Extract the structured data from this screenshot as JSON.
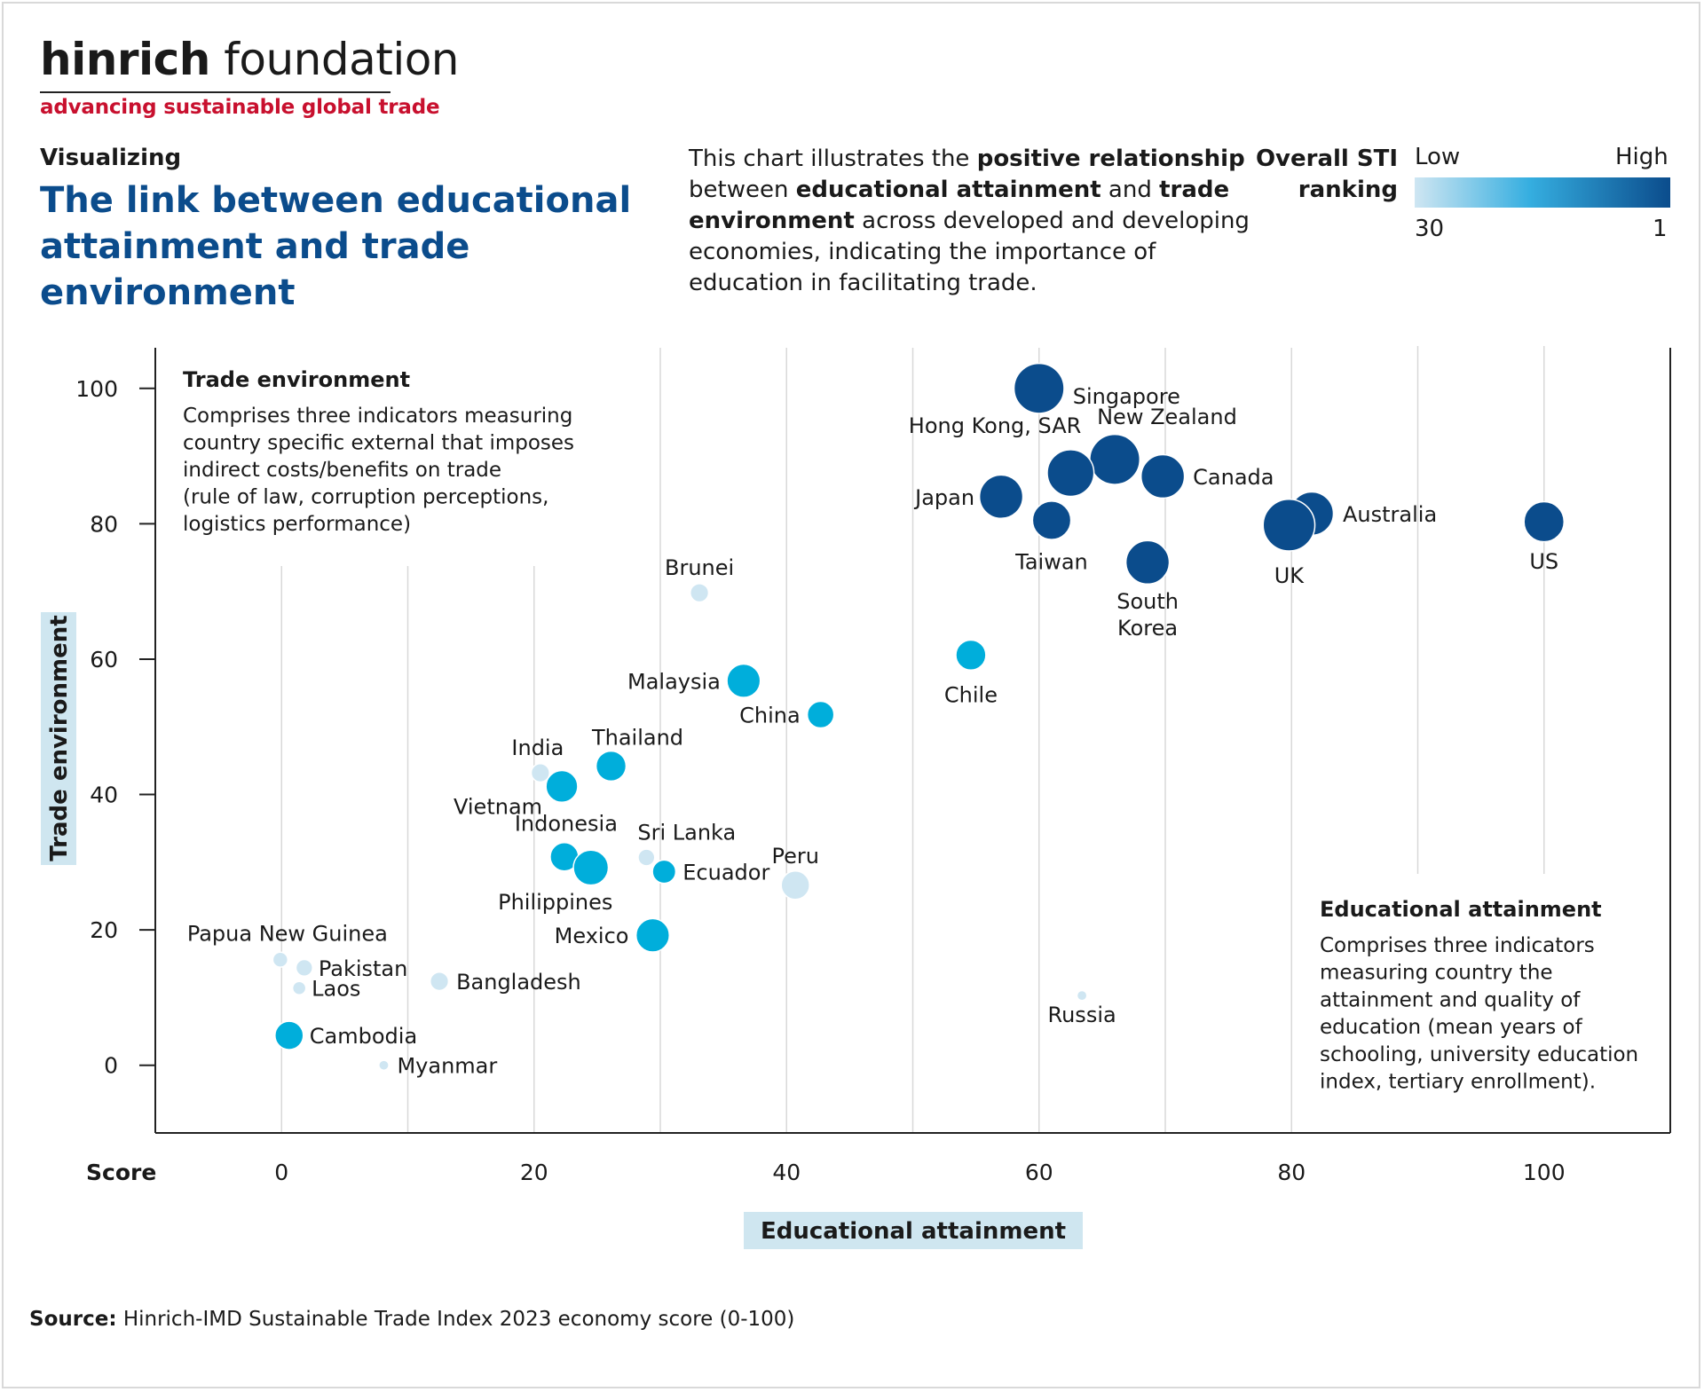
{
  "brand": {
    "name_bold": "hinrich",
    "name_light": " foundation",
    "tagline": "advancing sustainable global trade"
  },
  "header": {
    "kicker": "Visualizing",
    "title": "The link between educational attainment and trade environment",
    "description": {
      "t1": "This chart illustrates the ",
      "b1": "positive relationship",
      "t2": " between ",
      "b2": "educational attainment",
      "t3": " and ",
      "b3": "trade environment",
      "t4": " across developed and developing economies, indicating the importance of education in facilitating trade."
    }
  },
  "legend": {
    "title": "Overall STI ranking",
    "low_label": "Low",
    "high_label": "High",
    "min_value": "30",
    "max_value": "1",
    "colors": {
      "low": "#cfe6f2",
      "mid": "#00aedb",
      "high": "#0b4c8c"
    }
  },
  "source": {
    "label": "Source:",
    "text": " Hinrich-IMD Sustainable Trade Index 2023 economy score (0-100)"
  },
  "chart_data": {
    "type": "scatter",
    "xlabel": "Educational attainment",
    "ylabel": "Trade environment",
    "score_label": "Score",
    "xlim": [
      -10,
      110
    ],
    "ylim": [
      -10,
      106
    ],
    "x_ticks": [
      0,
      20,
      40,
      60,
      80,
      100
    ],
    "y_ticks": [
      0,
      20,
      40,
      60,
      80,
      100
    ],
    "grid": "vertical",
    "color_scale": "Overall STI ranking (tier: low / mid / high)",
    "annotations": [
      {
        "title": "Trade environment",
        "lines": [
          "Comprises three indicators measuring",
          "country specific external that imposes",
          "indirect costs/benefits on trade",
          "(rule of law, corruption perceptions,",
          "logistics performance)"
        ]
      },
      {
        "title": "Educational attainment",
        "lines": [
          "Comprises three indicators",
          "measuring country the",
          "attainment and quality of",
          "education (mean years of",
          "schooling, university education",
          "index, tertiary enrollment)."
        ]
      }
    ],
    "points": [
      {
        "label": "Singapore",
        "x": 60,
        "y": 100,
        "tier": "high",
        "size": 3
      },
      {
        "label": "New Zealand",
        "x": 66,
        "y": 89.5,
        "tier": "high",
        "size": 3
      },
      {
        "label": "Hong Kong, SAR",
        "x": 62.5,
        "y": 87.5,
        "tier": "high",
        "size": 2.8
      },
      {
        "label": "Canada",
        "x": 69.8,
        "y": 87,
        "tier": "high",
        "size": 2.6
      },
      {
        "label": "Japan",
        "x": 57,
        "y": 84,
        "tier": "high",
        "size": 2.6
      },
      {
        "label": "Taiwan",
        "x": 61,
        "y": 80.5,
        "tier": "high",
        "size": 2.3
      },
      {
        "label": "Australia",
        "x": 81.6,
        "y": 81.5,
        "tier": "high",
        "size": 2.6
      },
      {
        "label": "UK",
        "x": 79.8,
        "y": 79.8,
        "tier": "high",
        "size": 3.1
      },
      {
        "label": "US",
        "x": 100,
        "y": 80.3,
        "tier": "high",
        "size": 2.4
      },
      {
        "label": "South Korea",
        "x": 68.6,
        "y": 74.3,
        "tier": "high",
        "size": 2.6
      },
      {
        "label": "Chile",
        "x": 54.6,
        "y": 60.6,
        "tier": "mid",
        "size": 1.8
      },
      {
        "label": "Brunei",
        "x": 33.1,
        "y": 69.8,
        "tier": "low",
        "size": 1.1
      },
      {
        "label": "Malaysia",
        "x": 36.6,
        "y": 56.8,
        "tier": "mid",
        "size": 2.0
      },
      {
        "label": "China",
        "x": 42.7,
        "y": 51.8,
        "tier": "mid",
        "size": 1.6
      },
      {
        "label": "Thailand",
        "x": 26.1,
        "y": 44.2,
        "tier": "mid",
        "size": 1.8
      },
      {
        "label": "India",
        "x": 20.5,
        "y": 43.2,
        "tier": "low",
        "size": 1.1
      },
      {
        "label": "Vietnam",
        "x": 22.2,
        "y": 41.2,
        "tier": "mid",
        "size": 1.9
      },
      {
        "label": "Indonesia",
        "x": 22.4,
        "y": 30.8,
        "tier": "mid",
        "size": 1.7
      },
      {
        "label": "Philippines",
        "x": 24.5,
        "y": 29.2,
        "tier": "mid",
        "size": 2.1
      },
      {
        "label": "Sri Lanka",
        "x": 28.9,
        "y": 30.7,
        "tier": "low",
        "size": 1.0
      },
      {
        "label": "Ecuador",
        "x": 30.3,
        "y": 28.6,
        "tier": "mid",
        "size": 1.4
      },
      {
        "label": "Peru",
        "x": 40.7,
        "y": 26.6,
        "tier": "low",
        "size": 1.7
      },
      {
        "label": "Mexico",
        "x": 29.4,
        "y": 19.2,
        "tier": "mid",
        "size": 2.0
      },
      {
        "label": "Papua New Guinea",
        "x": -0.1,
        "y": 15.6,
        "tier": "low",
        "size": 0.9
      },
      {
        "label": "Pakistan",
        "x": 1.8,
        "y": 14.4,
        "tier": "low",
        "size": 1.0
      },
      {
        "label": "Laos",
        "x": 1.4,
        "y": 11.4,
        "tier": "low",
        "size": 0.8
      },
      {
        "label": "Bangladesh",
        "x": 12.5,
        "y": 12.4,
        "tier": "low",
        "size": 1.1
      },
      {
        "label": "Cambodia",
        "x": 0.6,
        "y": 4.4,
        "tier": "mid",
        "size": 1.7
      },
      {
        "label": "Myanmar",
        "x": 8.1,
        "y": 0,
        "tier": "low",
        "size": 0.6
      },
      {
        "label": "Russia",
        "x": 63.4,
        "y": 10.3,
        "tier": "low",
        "size": 0.6
      }
    ]
  }
}
